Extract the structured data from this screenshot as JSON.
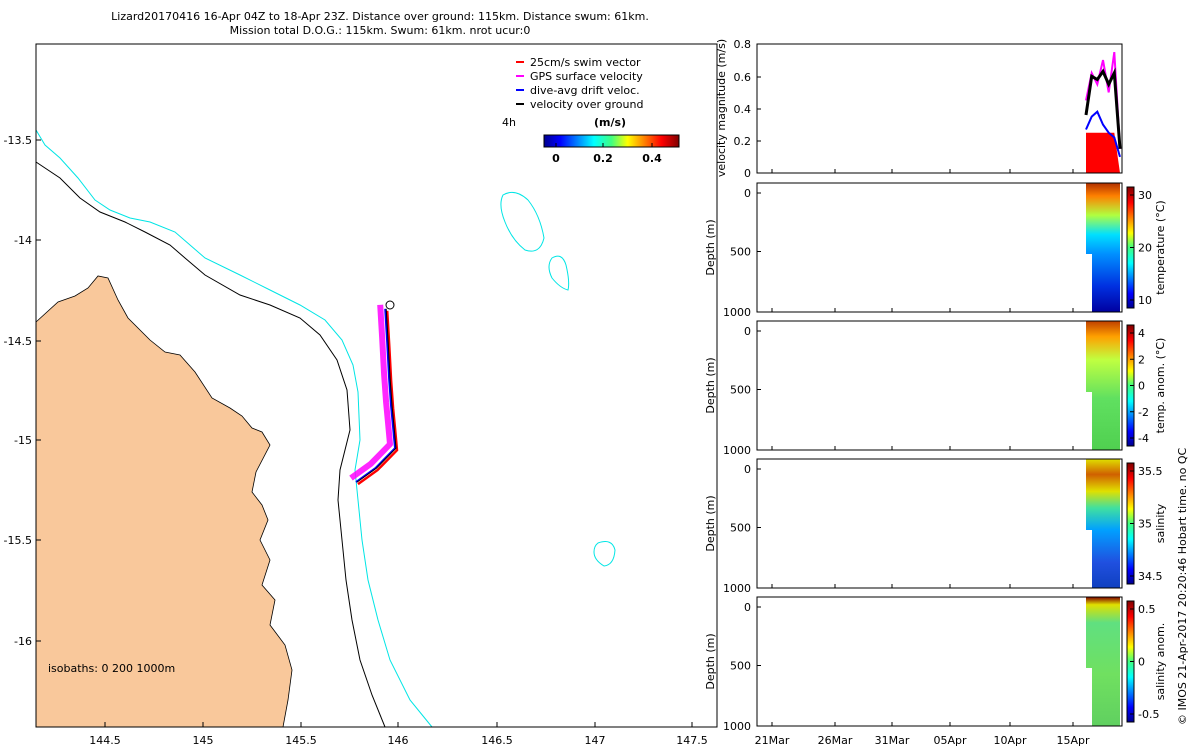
{
  "title": {
    "line1": "Lizard20170416 16-Apr 04Z to 18-Apr 23Z. Distance over ground: 115km. Distance swum: 61km.",
    "line2": "Mission total D.O.G.: 115km. Swum: 61km. nrot ucur:0"
  },
  "credit": "© IMOS 21-Apr-2017 20:20:46 Hobart time. no QC",
  "map": {
    "xticks": [
      "144.5",
      "145",
      "145.5",
      "146",
      "146.5",
      "147",
      "147.5"
    ],
    "yticks": [
      "-13.5",
      "-14",
      "-14.5",
      "-15",
      "-15.5",
      "-16"
    ],
    "isobath_text": "isobaths: 0   200  1000m",
    "legend": [
      {
        "label": "25cm/s swim vector",
        "color": "#ff0000"
      },
      {
        "label": "GPS surface velocity",
        "color": "#ff00ff"
      },
      {
        "label": "dive-avg drift veloc.",
        "color": "#0000ff"
      },
      {
        "label": "velocity over ground",
        "color": "#000000"
      }
    ],
    "scale_label": "4h",
    "colorbar_unit": "(m/s)",
    "colorbar_ticks": [
      "0",
      "0.2",
      "0.4"
    ],
    "colors": {
      "land": "#f9c89b",
      "isobath_200": "#00e5e5",
      "isobath_1000": "#000000"
    }
  },
  "panels": {
    "time_ticks": [
      "21Mar",
      "26Mar",
      "31Mar",
      "05Apr",
      "10Apr",
      "15Apr"
    ],
    "velocity": {
      "ylabel": "velocity magnitude (m/s)",
      "yticks": [
        "0",
        "0.2",
        "0.4",
        "0.6",
        "0.8"
      ]
    },
    "temperature": {
      "ylabel": "Depth (m)",
      "yticks": [
        "0",
        "500",
        "1000"
      ],
      "cbar_label": "temperature (°C)",
      "cbar_ticks": [
        "30",
        "20",
        "10"
      ]
    },
    "temp_anom": {
      "ylabel": "Depth (m)",
      "yticks": [
        "0",
        "500",
        "1000"
      ],
      "cbar_label": "temp. anom. (°C)",
      "cbar_ticks": [
        "4",
        "2",
        "0",
        "-2",
        "-4"
      ]
    },
    "salinity": {
      "ylabel": "Depth (m)",
      "yticks": [
        "0",
        "500",
        "1000"
      ],
      "cbar_label": "salinity",
      "cbar_ticks": [
        "35.5",
        "35",
        "34.5"
      ]
    },
    "sal_anom": {
      "ylabel": "Depth (m)",
      "yticks": [
        "0",
        "500",
        "1000"
      ],
      "cbar_label": "salinity anom.",
      "cbar_ticks": [
        "0.5",
        "0",
        "-0.5"
      ]
    }
  },
  "chart_data": [
    {
      "type": "scatter",
      "title": "",
      "xlabel": "",
      "ylabel": "",
      "xlim": [
        144.15,
        147.65
      ],
      "ylim": [
        -16.43,
        -13.0
      ],
      "series": [
        {
          "name": "velocity over ground",
          "x": [
            145.95,
            145.96,
            145.97,
            145.98,
            145.99,
            146.0,
            145.9,
            145.8
          ],
          "y": [
            -14.33,
            -14.5,
            -14.68,
            -14.82,
            -14.92,
            -15.03,
            -15.13,
            -15.2
          ]
        }
      ]
    },
    {
      "type": "line",
      "title": "",
      "xlabel": "",
      "ylabel": "velocity magnitude (m/s)",
      "xlim": [
        "19Mar",
        "18Apr"
      ],
      "ylim": [
        0,
        0.8
      ],
      "x": [
        "16Apr 04Z",
        "16Apr 16Z",
        "17Apr 04Z",
        "17Apr 16Z",
        "18Apr 04Z",
        "18Apr 16Z",
        "18Apr 23Z"
      ],
      "series": [
        {
          "name": "GPS surface velocity",
          "values": [
            0.45,
            0.62,
            0.55,
            0.7,
            0.5,
            0.75,
            0.15
          ]
        },
        {
          "name": "velocity over ground",
          "values": [
            0.36,
            0.6,
            0.58,
            0.63,
            0.55,
            0.62,
            0.15
          ]
        },
        {
          "name": "dive-avg drift veloc.",
          "values": [
            0.27,
            0.35,
            0.38,
            0.3,
            0.25,
            0.22,
            0.1
          ]
        },
        {
          "name": "25cm/s swim vector",
          "values": [
            0.25,
            0.25,
            0.25,
            0.25,
            0.25,
            0.25,
            0.0
          ]
        }
      ]
    }
  ]
}
